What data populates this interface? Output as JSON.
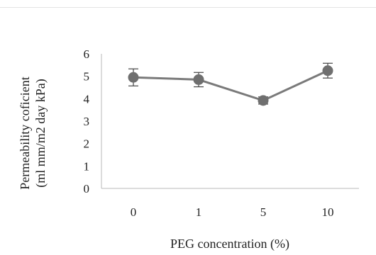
{
  "chart_data": {
    "type": "line",
    "title": "",
    "xlabel": "PEG concentration (%)",
    "ylabel_lines": [
      "Permeability coficient",
      "(ml mm/m2 day kPa)"
    ],
    "categories": [
      "0",
      "1",
      "5",
      "10"
    ],
    "series": [
      {
        "values": [
          4.95,
          4.85,
          3.92,
          5.25
        ],
        "error": [
          0.38,
          0.32,
          0.16,
          0.33
        ]
      }
    ],
    "ylim": [
      0,
      6
    ],
    "yticks": [
      0,
      1,
      2,
      3,
      4,
      5,
      6
    ],
    "grid": false,
    "legend": "none",
    "colors": {
      "line": "#7a7a7a",
      "marker": "#6f6f6f",
      "errorbar": "#444444",
      "axis": "#b8b8b8",
      "text": "#222222"
    }
  }
}
